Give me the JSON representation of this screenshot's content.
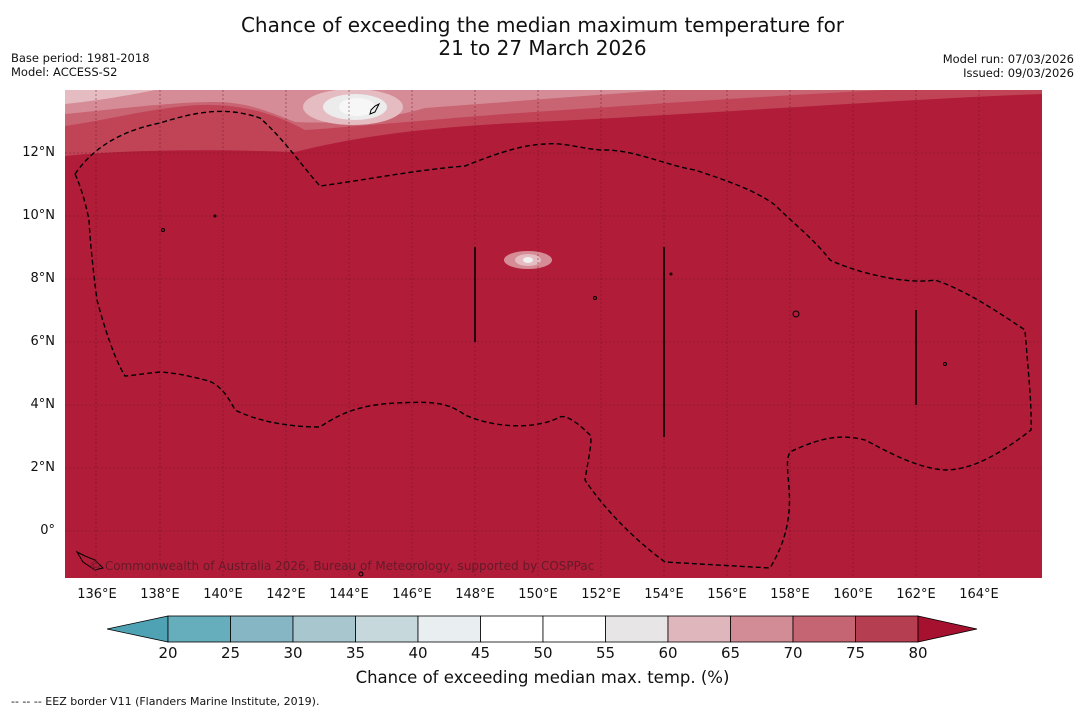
{
  "title": {
    "line1": "Chance of exceeding the median maximum temperature for",
    "line2": "21 to 27 March 2026"
  },
  "meta": {
    "base_period": "Base period: 1981-2018",
    "model": "Model: ACCESS-S2",
    "model_run": "Model run: 07/03/2026",
    "issued": "Issued: 09/03/2026"
  },
  "map": {
    "copyright": "© Commonwealth of Australia 2026, Bureau of Meteorology, supported by COSPPac",
    "lat_labels": [
      "12°N",
      "10°N",
      "8°N",
      "6°N",
      "4°N",
      "2°N",
      "0°"
    ],
    "lon_labels": [
      "136°E",
      "138°E",
      "140°E",
      "142°E",
      "144°E",
      "146°E",
      "148°E",
      "150°E",
      "152°E",
      "154°E",
      "156°E",
      "158°E",
      "160°E",
      "162°E",
      "164°E"
    ],
    "dominant_fill": "#b11c39"
  },
  "colorbar": {
    "ticks": [
      "20",
      "25",
      "30",
      "35",
      "40",
      "45",
      "50",
      "55",
      "60",
      "65",
      "70",
      "75",
      "80"
    ],
    "colors": [
      "#67aebd",
      "#86b6c3",
      "#a8c6cd",
      "#c6d8dc",
      "#e9eef0",
      "#ffffff",
      "#ffffff",
      "#e7e5e6",
      "#dfb6bc",
      "#d18c95",
      "#c56573",
      "#b53e50"
    ],
    "low_extend_color": "#4ea2b3",
    "high_extend_color": "#a5112f",
    "label": "Chance of exceeding median max. temp. (%)"
  },
  "footnote": "--  --  -- EEZ border V11 (Flanders Marine Institute, 2019)."
}
